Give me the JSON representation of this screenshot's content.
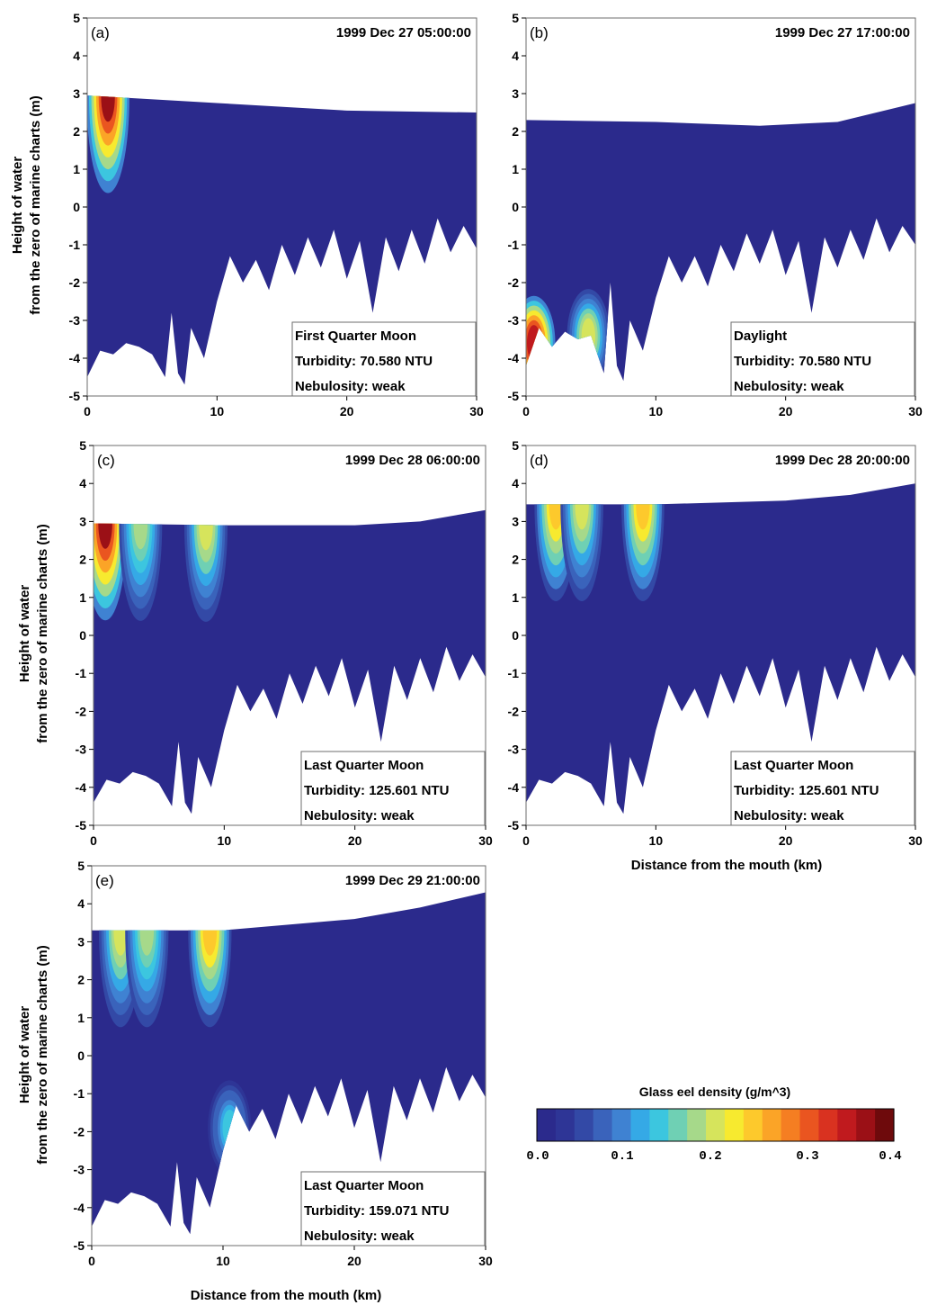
{
  "figure": {
    "shared_ylabel_line1": "Height of water",
    "shared_ylabel_line2": "from the zero of marine charts (m)",
    "shared_xlabel": "Distance from the mouth (km)",
    "colors": {
      "background_water": "#2b2a8c",
      "high_density": "#d7191c"
    }
  },
  "colorbar": {
    "title": "Glass eel density (g/m^3)",
    "ticks": [
      "0.0",
      "0.1",
      "0.2",
      "0.3",
      "0.4"
    ],
    "tick_values": [
      0.0,
      0.1,
      0.2,
      0.3,
      0.4
    ],
    "range": [
      0.0,
      0.4
    ],
    "colors": [
      "#2b2a8c",
      "#2e3596",
      "#3349a6",
      "#3a63bb",
      "#3f82d2",
      "#35a9e6",
      "#3cc6df",
      "#6fd0b4",
      "#a6d98a",
      "#d6e45c",
      "#f7ea2f",
      "#fdc92c",
      "#fba427",
      "#f57e22",
      "#ea5520",
      "#d93220",
      "#c01a1e",
      "#9b1016",
      "#6e0a0c"
    ]
  },
  "chart_data": [
    {
      "type": "heatmap",
      "panel": "(a)",
      "timestamp": "1999 Dec 27 05:00:00",
      "info": [
        "First Quarter Moon",
        "Turbidity: 70.580 NTU",
        "Nebulosity: weak"
      ],
      "xlim": [
        0,
        30
      ],
      "ylim": [
        -5,
        5
      ],
      "xticks": [
        "0",
        "10",
        "20",
        "30"
      ],
      "yticks": [
        "-5",
        "-4",
        "-3",
        "-2",
        "-1",
        "0",
        "1",
        "2",
        "3",
        "4",
        "5"
      ],
      "surface": [
        [
          0,
          2.95
        ],
        [
          10,
          2.75
        ],
        [
          20,
          2.55
        ],
        [
          30,
          2.5
        ]
      ],
      "bed": [
        [
          0,
          -4.5
        ],
        [
          1,
          -3.8
        ],
        [
          2,
          -3.9
        ],
        [
          3,
          -3.6
        ],
        [
          4,
          -3.7
        ],
        [
          5,
          -3.9
        ],
        [
          6,
          -4.5
        ],
        [
          6.5,
          -2.8
        ],
        [
          7,
          -4.4
        ],
        [
          7.5,
          -4.7
        ],
        [
          8,
          -3.2
        ],
        [
          9,
          -4.0
        ],
        [
          10,
          -2.5
        ],
        [
          11,
          -1.3
        ],
        [
          12,
          -2.0
        ],
        [
          13,
          -1.4
        ],
        [
          14,
          -2.2
        ],
        [
          15,
          -1.0
        ],
        [
          16,
          -1.8
        ],
        [
          17,
          -0.8
        ],
        [
          18,
          -1.6
        ],
        [
          19,
          -0.6
        ],
        [
          20,
          -1.9
        ],
        [
          21,
          -0.9
        ],
        [
          22,
          -2.8
        ],
        [
          23,
          -0.8
        ],
        [
          24,
          -1.7
        ],
        [
          25,
          -0.6
        ],
        [
          26,
          -1.5
        ],
        [
          27,
          -0.3
        ],
        [
          28,
          -1.2
        ],
        [
          29,
          -0.5
        ],
        [
          30,
          -1.1
        ]
      ],
      "plumes": [
        {
          "x": 1.6,
          "value": 0.36
        }
      ]
    },
    {
      "type": "heatmap",
      "panel": "(b)",
      "timestamp": "1999 Dec 27 17:00:00",
      "info": [
        "Daylight",
        "Turbidity: 70.580 NTU",
        "Nebulosity: weak"
      ],
      "xlim": [
        0,
        30
      ],
      "ylim": [
        -5,
        5
      ],
      "xticks": [
        "0",
        "10",
        "20",
        "30"
      ],
      "yticks": [
        "-5",
        "-4",
        "-3",
        "-2",
        "-1",
        "0",
        "1",
        "2",
        "3",
        "4",
        "5"
      ],
      "surface": [
        [
          0,
          2.3
        ],
        [
          10,
          2.25
        ],
        [
          18,
          2.15
        ],
        [
          24,
          2.25
        ],
        [
          30,
          2.75
        ]
      ],
      "bed": [
        [
          0,
          -4.2
        ],
        [
          1,
          -3.2
        ],
        [
          2,
          -3.7
        ],
        [
          3,
          -3.3
        ],
        [
          4,
          -3.5
        ],
        [
          5,
          -3.4
        ],
        [
          6,
          -4.4
        ],
        [
          6.5,
          -2.0
        ],
        [
          7,
          -4.2
        ],
        [
          7.5,
          -4.6
        ],
        [
          8,
          -3.0
        ],
        [
          9,
          -3.8
        ],
        [
          10,
          -2.4
        ],
        [
          11,
          -1.3
        ],
        [
          12,
          -2.0
        ],
        [
          13,
          -1.3
        ],
        [
          14,
          -2.1
        ],
        [
          15,
          -1.0
        ],
        [
          16,
          -1.7
        ],
        [
          17,
          -0.7
        ],
        [
          18,
          -1.5
        ],
        [
          19,
          -0.6
        ],
        [
          20,
          -1.8
        ],
        [
          21,
          -0.9
        ],
        [
          22,
          -2.8
        ],
        [
          23,
          -0.8
        ],
        [
          24,
          -1.6
        ],
        [
          25,
          -0.6
        ],
        [
          26,
          -1.4
        ],
        [
          27,
          -0.3
        ],
        [
          28,
          -1.2
        ],
        [
          29,
          -0.5
        ],
        [
          30,
          -1.0
        ]
      ],
      "bottom_patches": [
        {
          "x": 0.6,
          "value": 0.34
        },
        {
          "x": 4.8,
          "value": 0.2
        }
      ]
    },
    {
      "type": "heatmap",
      "panel": "(c)",
      "timestamp": "1999 Dec 28 06:00:00",
      "info": [
        "Last Quarter Moon",
        "Turbidity: 125.601 NTU",
        "Nebulosity: weak"
      ],
      "xlim": [
        0,
        30
      ],
      "ylim": [
        -5,
        5
      ],
      "xticks": [
        "0",
        "10",
        "20",
        "30"
      ],
      "yticks": [
        "-5",
        "-4",
        "-3",
        "-2",
        "-1",
        "0",
        "1",
        "2",
        "3",
        "4",
        "5"
      ],
      "surface": [
        [
          0,
          2.95
        ],
        [
          10,
          2.9
        ],
        [
          20,
          2.9
        ],
        [
          25,
          3.0
        ],
        [
          30,
          3.3
        ]
      ],
      "bed": [
        [
          0,
          -4.4
        ],
        [
          1,
          -3.8
        ],
        [
          2,
          -3.9
        ],
        [
          3,
          -3.6
        ],
        [
          4,
          -3.7
        ],
        [
          5,
          -3.9
        ],
        [
          6,
          -4.5
        ],
        [
          6.5,
          -2.8
        ],
        [
          7,
          -4.4
        ],
        [
          7.5,
          -4.7
        ],
        [
          8,
          -3.2
        ],
        [
          9,
          -4.0
        ],
        [
          10,
          -2.5
        ],
        [
          11,
          -1.3
        ],
        [
          12,
          -2.0
        ],
        [
          13,
          -1.4
        ],
        [
          14,
          -2.2
        ],
        [
          15,
          -1.0
        ],
        [
          16,
          -1.8
        ],
        [
          17,
          -0.8
        ],
        [
          18,
          -1.6
        ],
        [
          19,
          -0.6
        ],
        [
          20,
          -1.9
        ],
        [
          21,
          -0.9
        ],
        [
          22,
          -2.8
        ],
        [
          23,
          -0.8
        ],
        [
          24,
          -1.7
        ],
        [
          25,
          -0.6
        ],
        [
          26,
          -1.5
        ],
        [
          27,
          -0.3
        ],
        [
          28,
          -1.2
        ],
        [
          29,
          -0.5
        ],
        [
          30,
          -1.1
        ]
      ],
      "plumes": [
        {
          "x": 0.9,
          "value": 0.36
        },
        {
          "x": 3.6,
          "value": 0.18
        },
        {
          "x": 8.6,
          "value": 0.2
        }
      ]
    },
    {
      "type": "heatmap",
      "panel": "(d)",
      "timestamp": "1999 Dec 28 20:00:00",
      "info": [
        "Last Quarter Moon",
        "Turbidity: 125.601 NTU",
        "Nebulosity: weak"
      ],
      "xlim": [
        0,
        30
      ],
      "ylim": [
        -5,
        5
      ],
      "xticks": [
        "0",
        "10",
        "20",
        "30"
      ],
      "yticks": [
        "-5",
        "-4",
        "-3",
        "-2",
        "-1",
        "0",
        "1",
        "2",
        "3",
        "4",
        "5"
      ],
      "surface": [
        [
          0,
          3.45
        ],
        [
          10,
          3.45
        ],
        [
          20,
          3.55
        ],
        [
          25,
          3.7
        ],
        [
          30,
          4.0
        ]
      ],
      "bed": [
        [
          0,
          -4.4
        ],
        [
          1,
          -3.8
        ],
        [
          2,
          -3.9
        ],
        [
          3,
          -3.6
        ],
        [
          4,
          -3.7
        ],
        [
          5,
          -3.9
        ],
        [
          6,
          -4.5
        ],
        [
          6.5,
          -2.8
        ],
        [
          7,
          -4.4
        ],
        [
          7.5,
          -4.7
        ],
        [
          8,
          -3.2
        ],
        [
          9,
          -4.0
        ],
        [
          10,
          -2.5
        ],
        [
          11,
          -1.3
        ],
        [
          12,
          -2.0
        ],
        [
          13,
          -1.4
        ],
        [
          14,
          -2.2
        ],
        [
          15,
          -1.0
        ],
        [
          16,
          -1.8
        ],
        [
          17,
          -0.8
        ],
        [
          18,
          -1.6
        ],
        [
          19,
          -0.6
        ],
        [
          20,
          -1.9
        ],
        [
          21,
          -0.9
        ],
        [
          22,
          -2.8
        ],
        [
          23,
          -0.8
        ],
        [
          24,
          -1.7
        ],
        [
          25,
          -0.6
        ],
        [
          26,
          -1.5
        ],
        [
          27,
          -0.3
        ],
        [
          28,
          -1.2
        ],
        [
          29,
          -0.5
        ],
        [
          30,
          -1.1
        ]
      ],
      "plumes": [
        {
          "x": 2.3,
          "value": 0.25
        },
        {
          "x": 4.3,
          "value": 0.2
        },
        {
          "x": 9.0,
          "value": 0.25
        }
      ]
    },
    {
      "type": "heatmap",
      "panel": "(e)",
      "timestamp": "1999 Dec 29 21:00:00",
      "info": [
        "Last Quarter Moon",
        "Turbidity: 159.071 NTU",
        "Nebulosity: weak"
      ],
      "xlim": [
        0,
        30
      ],
      "ylim": [
        -5,
        5
      ],
      "xticks": [
        "0",
        "10",
        "20",
        "30"
      ],
      "yticks": [
        "-5",
        "-4",
        "-3",
        "-2",
        "-1",
        "0",
        "1",
        "2",
        "3",
        "4",
        "5"
      ],
      "surface": [
        [
          0,
          3.3
        ],
        [
          10,
          3.3
        ],
        [
          20,
          3.6
        ],
        [
          25,
          3.9
        ],
        [
          30,
          4.3
        ]
      ],
      "bed": [
        [
          0,
          -4.5
        ],
        [
          1,
          -3.8
        ],
        [
          2,
          -3.9
        ],
        [
          3,
          -3.6
        ],
        [
          4,
          -3.7
        ],
        [
          5,
          -3.9
        ],
        [
          6,
          -4.5
        ],
        [
          6.5,
          -2.8
        ],
        [
          7,
          -4.4
        ],
        [
          7.5,
          -4.7
        ],
        [
          8,
          -3.2
        ],
        [
          9,
          -4.0
        ],
        [
          10,
          -2.5
        ],
        [
          11,
          -1.3
        ],
        [
          12,
          -2.0
        ],
        [
          13,
          -1.4
        ],
        [
          14,
          -2.2
        ],
        [
          15,
          -1.0
        ],
        [
          16,
          -1.8
        ],
        [
          17,
          -0.8
        ],
        [
          18,
          -1.6
        ],
        [
          19,
          -0.6
        ],
        [
          20,
          -1.9
        ],
        [
          21,
          -0.9
        ],
        [
          22,
          -2.8
        ],
        [
          23,
          -0.8
        ],
        [
          24,
          -1.7
        ],
        [
          25,
          -0.6
        ],
        [
          26,
          -1.5
        ],
        [
          27,
          -0.3
        ],
        [
          28,
          -1.2
        ],
        [
          29,
          -0.5
        ],
        [
          30,
          -1.1
        ]
      ],
      "plumes": [
        {
          "x": 2.2,
          "value": 0.2
        },
        {
          "x": 4.2,
          "value": 0.18
        },
        {
          "x": 9.0,
          "value": 0.25
        }
      ],
      "bottom_patches": [
        {
          "x": 10.5,
          "value": 0.13
        }
      ]
    }
  ]
}
